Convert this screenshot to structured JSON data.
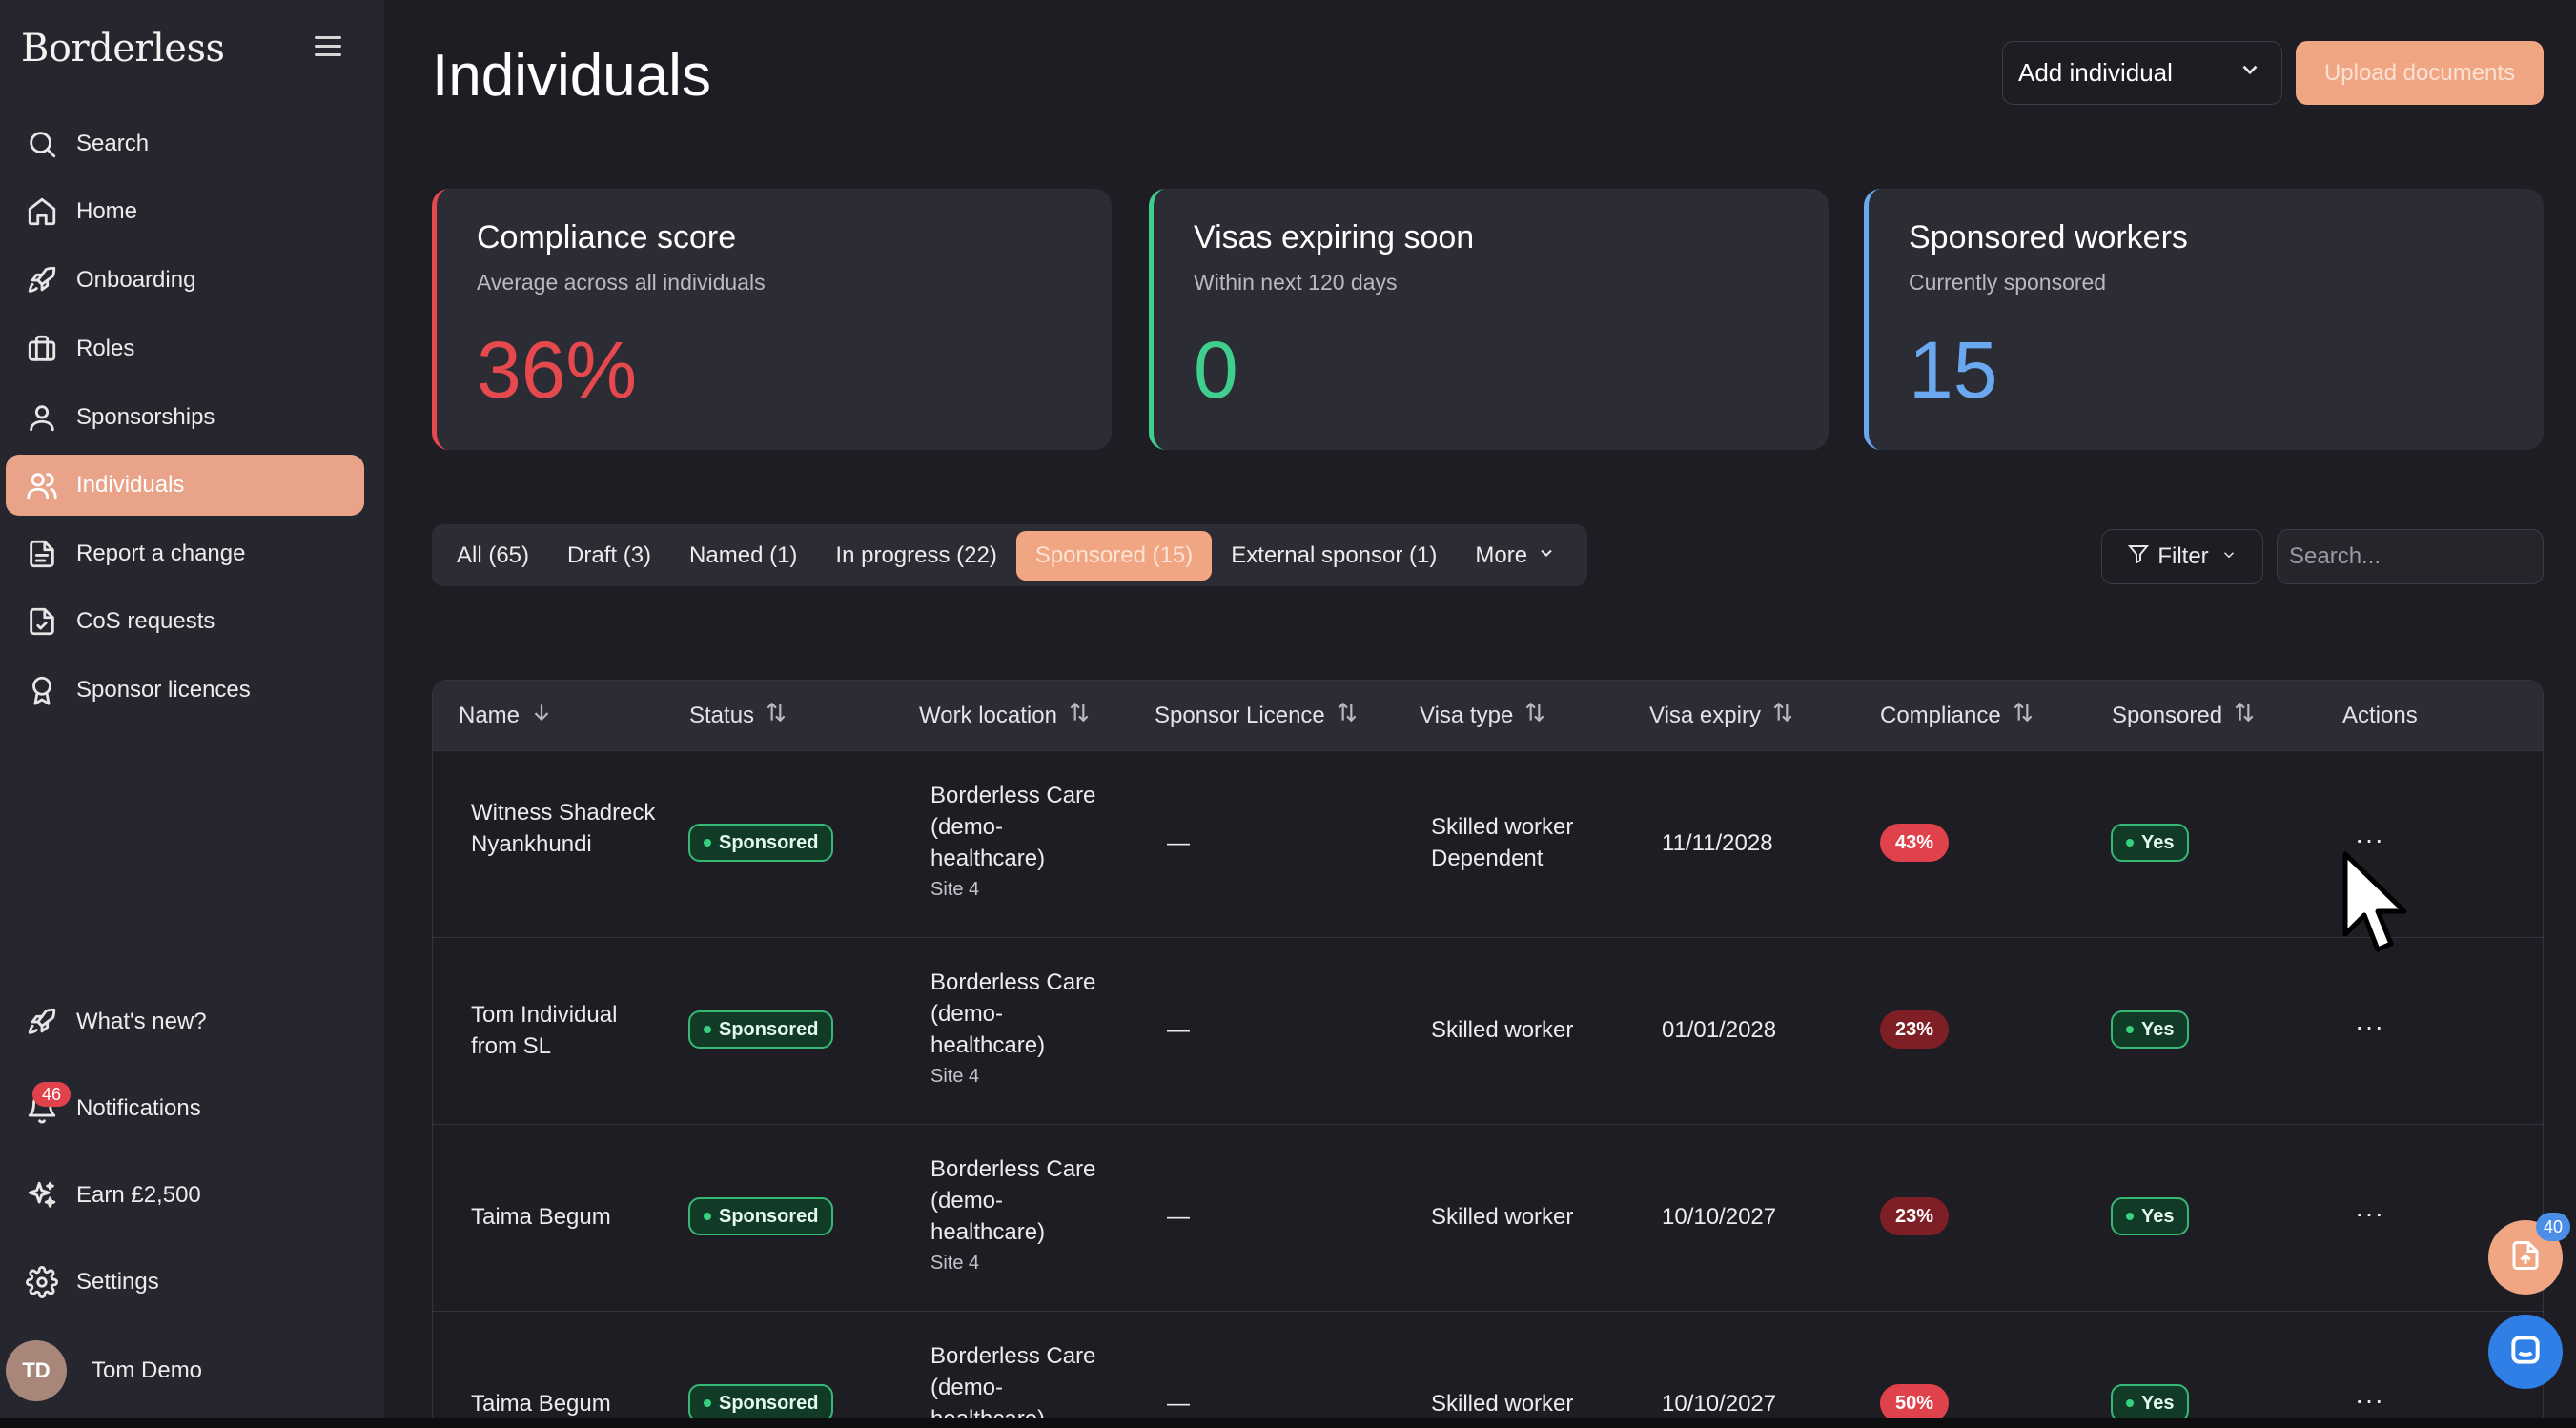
{
  "app": {
    "brand": "Borderless"
  },
  "sidebar": {
    "items": [
      {
        "label": "Search",
        "icon": "search-icon"
      },
      {
        "label": "Home",
        "icon": "home-icon"
      },
      {
        "label": "Onboarding",
        "icon": "rocket-icon"
      },
      {
        "label": "Roles",
        "icon": "briefcase-icon"
      },
      {
        "label": "Sponsorships",
        "icon": "user-icon"
      },
      {
        "label": "Individuals",
        "icon": "users-icon",
        "active": true
      },
      {
        "label": "Report a change",
        "icon": "document-icon"
      },
      {
        "label": "CoS requests",
        "icon": "file-check-icon"
      },
      {
        "label": "Sponsor licences",
        "icon": "award-icon"
      }
    ],
    "bottom_items": [
      {
        "label": "What's new?",
        "icon": "rocket-icon"
      },
      {
        "label": "Notifications",
        "icon": "bell-icon",
        "badge": "46"
      },
      {
        "label": "Earn £2,500",
        "icon": "sparkles-icon"
      },
      {
        "label": "Settings",
        "icon": "gear-icon"
      }
    ],
    "user": {
      "initials": "TD",
      "name": "Tom Demo"
    }
  },
  "header": {
    "title": "Individuals",
    "add_select": "Add individual",
    "upload_label": "Upload documents"
  },
  "cards": [
    {
      "title": "Compliance score",
      "subtitle": "Average across all individuals",
      "value": "36%",
      "color": "#e5484d"
    },
    {
      "title": "Visas expiring soon",
      "subtitle": "Within next 120 days",
      "value": "0",
      "color": "#3ecf8e"
    },
    {
      "title": "Sponsored workers",
      "subtitle": "Currently sponsored",
      "value": "15",
      "color": "#6aa8f0"
    }
  ],
  "tabs": [
    {
      "label": "All (65)"
    },
    {
      "label": "Draft (3)"
    },
    {
      "label": "Named (1)"
    },
    {
      "label": "In progress (22)"
    },
    {
      "label": "Sponsored (15)",
      "active": true
    },
    {
      "label": "External sponsor (1)"
    },
    {
      "label": "More"
    }
  ],
  "toolbar": {
    "filter_label": "Filter",
    "search_placeholder": "Search..."
  },
  "table": {
    "columns": [
      "Name",
      "Status",
      "Work location",
      "Sponsor Licence",
      "Visa type",
      "Visa expiry",
      "Compliance",
      "Sponsored",
      "Actions"
    ],
    "rows": [
      {
        "name": "Witness Shadreck Nyankhundi",
        "status": "Sponsored",
        "location": "Borderless Care (demo-healthcare)",
        "site": "Site 4",
        "licence": "—",
        "visa": "Skilled worker Dependent",
        "expiry": "11/11/2028",
        "compliance": "43%",
        "sponsored": "Yes",
        "actions": "···"
      },
      {
        "name": "Tom Individual from SL",
        "status": "Sponsored",
        "location": "Borderless Care (demo-healthcare)",
        "site": "Site 4",
        "licence": "—",
        "visa": "Skilled worker",
        "expiry": "01/01/2028",
        "compliance": "23%",
        "sponsored": "Yes",
        "actions": "···"
      },
      {
        "name": "Taima Begum",
        "status": "Sponsored",
        "location": "Borderless Care (demo-healthcare)",
        "site": "Site 4",
        "licence": "—",
        "visa": "Skilled worker",
        "expiry": "10/10/2027",
        "compliance": "23%",
        "sponsored": "Yes",
        "actions": "···"
      },
      {
        "name": "Taima Begum",
        "status": "Sponsored",
        "location": "Borderless Care (demo-healthcare)",
        "site": "",
        "licence": "—",
        "visa": "Skilled worker",
        "expiry": "10/10/2027",
        "compliance": "50%",
        "sponsored": "Yes",
        "actions": "···"
      }
    ]
  },
  "widgets": {
    "doc_badge": "40"
  }
}
